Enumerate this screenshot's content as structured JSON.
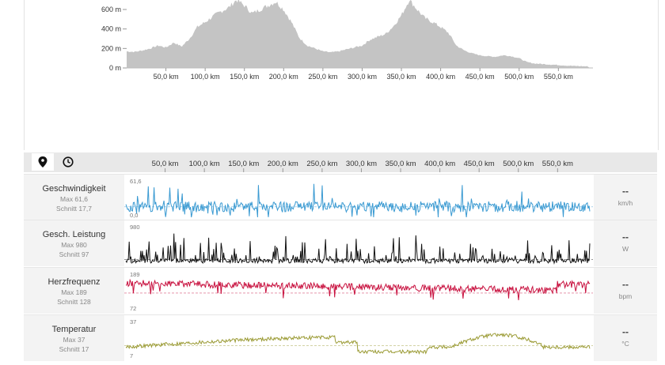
{
  "elevation": {
    "y_ticks": [
      "600 m",
      "400 m",
      "200 m",
      "0 m"
    ],
    "x_ticks": [
      "50,0 km",
      "100,0 km",
      "150,0 km",
      "200,0 km",
      "250,0 km",
      "300,0 km",
      "350,0 km",
      "400,0 km",
      "450,0 km",
      "500,0 km",
      "550,0 km"
    ],
    "fill_color": "#c4c4c4",
    "profile_km": [
      0,
      10,
      20,
      30,
      40,
      50,
      60,
      70,
      80,
      90,
      100,
      110,
      120,
      130,
      140,
      150,
      160,
      170,
      180,
      190,
      200,
      210,
      220,
      230,
      240,
      250,
      260,
      270,
      280,
      290,
      300,
      310,
      320,
      330,
      340,
      350,
      360,
      370,
      380,
      390,
      400,
      410,
      420,
      430,
      440,
      450,
      460,
      470,
      480,
      490,
      500,
      510,
      520,
      530,
      540,
      550,
      560,
      570,
      580,
      590
    ],
    "profile_m": [
      170,
      165,
      180,
      200,
      230,
      210,
      260,
      220,
      300,
      420,
      470,
      530,
      580,
      620,
      700,
      640,
      560,
      600,
      640,
      680,
      600,
      470,
      310,
      230,
      200,
      170,
      160,
      170,
      190,
      210,
      230,
      290,
      320,
      350,
      430,
      540,
      700,
      600,
      510,
      470,
      420,
      360,
      230,
      180,
      150,
      130,
      120,
      115,
      130,
      120,
      100,
      60,
      45,
      40,
      35,
      30,
      25,
      20,
      18,
      15
    ]
  },
  "toolbar": {
    "pin_button": "map-pin-icon",
    "clock_button": "clock-icon",
    "x_ticks": [
      "50,0 km",
      "100,0 km",
      "150,0 km",
      "200,0 km",
      "250,0 km",
      "300,0 km",
      "350,0 km",
      "400,0 km",
      "450,0 km",
      "500,0 km",
      "550,0 km"
    ]
  },
  "metrics": [
    {
      "key": "speed",
      "name": "Geschwindigkeit",
      "max": "Max 61,6",
      "avg": "Schnitt 17,7",
      "scale_top": "61,6",
      "scale_bottom": "0,0",
      "value": "--",
      "unit": "km/h",
      "color": "#3a9ad2",
      "top_value": 61.6,
      "avg_value": 17.7,
      "base_value": 17.7
    },
    {
      "key": "power",
      "name": "Gesch. Leistung",
      "max": "Max 980",
      "avg": "Schnitt 97",
      "scale_top": "980",
      "scale_bottom": "0",
      "value": "--",
      "unit": "W",
      "color": "#111111",
      "top_value": 980,
      "avg_value": 97,
      "base_value": 0
    },
    {
      "key": "hr",
      "name": "Herzfrequenz",
      "max": "Max 189",
      "avg": "Schnitt 128",
      "scale_top": "189",
      "scale_bottom": "72",
      "value": "--",
      "unit": "bpm",
      "color": "#c8103e",
      "top_value": 189,
      "avg_value": 128,
      "base_value": 150
    },
    {
      "key": "temp",
      "name": "Temperatur",
      "max": "Max 37",
      "avg": "Schnitt 17",
      "scale_top": "37",
      "scale_bottom": "7",
      "value": "--",
      "unit": "°C",
      "color": "#9a9a33",
      "top_value": 37,
      "avg_value": 17,
      "base_value": 16
    }
  ]
}
